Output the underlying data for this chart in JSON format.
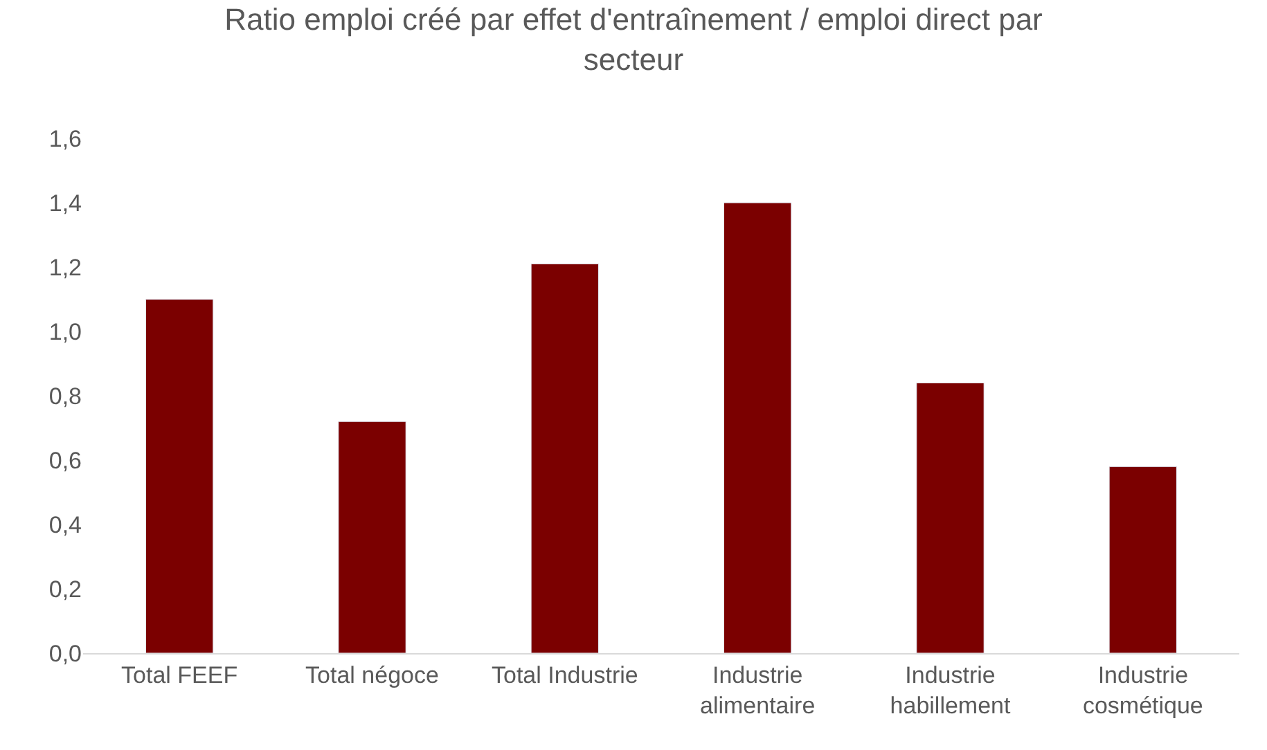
{
  "chart_data": {
    "type": "bar",
    "title": "Ratio emploi créé par effet d'entraînement / emploi direct par secteur",
    "categories": [
      "Total FEEF",
      "Total négoce",
      "Total Industrie",
      "Industrie alimentaire",
      "Industrie habillement",
      "Industrie cosmétique"
    ],
    "values": [
      1.1,
      0.72,
      1.21,
      1.4,
      0.84,
      0.58
    ],
    "color": "#7b0000",
    "ylim": [
      0,
      1.6
    ],
    "yticks": [
      {
        "value": 0,
        "label": "0,0"
      },
      {
        "value": 0.2,
        "label": "0,2"
      },
      {
        "value": 0.4,
        "label": "0,4"
      },
      {
        "value": 0.6,
        "label": "0,6"
      },
      {
        "value": 0.8,
        "label": "0,8"
      },
      {
        "value": 1.0,
        "label": "1,0"
      },
      {
        "value": 1.2,
        "label": "1,2"
      },
      {
        "value": 1.4,
        "label": "1,4"
      },
      {
        "value": 1.6,
        "label": "1,6"
      }
    ],
    "grid": false,
    "legend": false
  }
}
